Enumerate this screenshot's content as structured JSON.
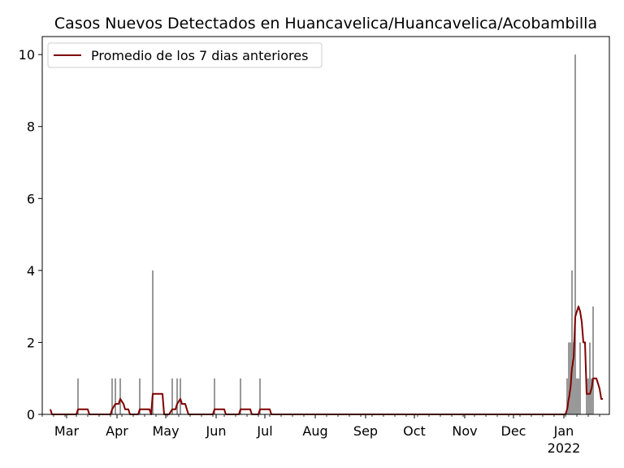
{
  "chart_data": {
    "type": "bar",
    "title": "Casos Nuevos Detectados en Huancavelica/Huancavelica/Acobambilla",
    "xlabel": "",
    "ylabel": "",
    "ylim": [
      0,
      10.5
    ],
    "xlim": [
      "2021-02-14",
      "2022-01-29"
    ],
    "grid": false,
    "legend_position": "top-left",
    "colors": {
      "bars": "#808080",
      "line": "#800000"
    },
    "x_ticks": [
      {
        "date": "2021-03-01",
        "label": "Mar"
      },
      {
        "date": "2021-04-01",
        "label": "Apr"
      },
      {
        "date": "2021-05-01",
        "label": "May"
      },
      {
        "date": "2021-06-01",
        "label": "Jun"
      },
      {
        "date": "2021-07-01",
        "label": "Jul"
      },
      {
        "date": "2021-08-01",
        "label": "Aug"
      },
      {
        "date": "2021-09-01",
        "label": "Sep"
      },
      {
        "date": "2021-10-01",
        "label": "Oct"
      },
      {
        "date": "2021-11-01",
        "label": "Nov"
      },
      {
        "date": "2021-12-01",
        "label": "Dec"
      },
      {
        "date": "2022-01-01",
        "label": "Jan",
        "sublabel": "2022"
      }
    ],
    "y_ticks": [
      0,
      2,
      4,
      6,
      8,
      10
    ],
    "series": [
      {
        "type": "bar",
        "points": [
          [
            "2021-02-20",
            0
          ],
          [
            "2021-02-26",
            0
          ],
          [
            "2021-03-08",
            1
          ],
          [
            "2021-03-29",
            1
          ],
          [
            "2021-03-31",
            1
          ],
          [
            "2021-04-03",
            1
          ],
          [
            "2021-04-15",
            1
          ],
          [
            "2021-04-23",
            4
          ],
          [
            "2021-05-05",
            1
          ],
          [
            "2021-05-08",
            1
          ],
          [
            "2021-05-10",
            1
          ],
          [
            "2021-05-31",
            1
          ],
          [
            "2021-06-16",
            1
          ],
          [
            "2021-06-28",
            1
          ],
          [
            "2022-01-03",
            1
          ],
          [
            "2022-01-04",
            2
          ],
          [
            "2022-01-05",
            2
          ],
          [
            "2022-01-06",
            4
          ],
          [
            "2022-01-07",
            2
          ],
          [
            "2022-01-08",
            10
          ],
          [
            "2022-01-09",
            1
          ],
          [
            "2022-01-10",
            1
          ],
          [
            "2022-01-11",
            2
          ],
          [
            "2022-01-15",
            1
          ],
          [
            "2022-01-16",
            1
          ],
          [
            "2022-01-17",
            2
          ],
          [
            "2022-01-18",
            1
          ],
          [
            "2022-01-19",
            3
          ]
        ]
      },
      {
        "type": "line",
        "name": "Promedio de los 7 dias anteriores",
        "points": [
          [
            "2021-02-19",
            0.14
          ],
          [
            "2021-02-20",
            0
          ],
          [
            "2021-03-07",
            0
          ],
          [
            "2021-03-08",
            0.14
          ],
          [
            "2021-03-14",
            0.14
          ],
          [
            "2021-03-15",
            0
          ],
          [
            "2021-03-28",
            0
          ],
          [
            "2021-03-29",
            0.14
          ],
          [
            "2021-03-31",
            0.29
          ],
          [
            "2021-04-02",
            0.29
          ],
          [
            "2021-04-03",
            0.43
          ],
          [
            "2021-04-05",
            0.29
          ],
          [
            "2021-04-06",
            0.14
          ],
          [
            "2021-04-08",
            0.14
          ],
          [
            "2021-04-09",
            0
          ],
          [
            "2021-04-14",
            0
          ],
          [
            "2021-04-15",
            0.14
          ],
          [
            "2021-04-21",
            0.14
          ],
          [
            "2021-04-22",
            0
          ],
          [
            "2021-04-23",
            0.57
          ],
          [
            "2021-04-29",
            0.57
          ],
          [
            "2021-04-30",
            0
          ],
          [
            "2021-05-03",
            0
          ],
          [
            "2021-05-05",
            0.14
          ],
          [
            "2021-05-07",
            0.14
          ],
          [
            "2021-05-08",
            0.29
          ],
          [
            "2021-05-10",
            0.43
          ],
          [
            "2021-05-11",
            0.29
          ],
          [
            "2021-05-13",
            0.29
          ],
          [
            "2021-05-14",
            0.14
          ],
          [
            "2021-05-15",
            0
          ],
          [
            "2021-05-30",
            0
          ],
          [
            "2021-05-31",
            0.14
          ],
          [
            "2021-06-06",
            0.14
          ],
          [
            "2021-06-07",
            0
          ],
          [
            "2021-06-15",
            0
          ],
          [
            "2021-06-16",
            0.14
          ],
          [
            "2021-06-22",
            0.14
          ],
          [
            "2021-06-23",
            0
          ],
          [
            "2021-06-27",
            0
          ],
          [
            "2021-06-28",
            0.14
          ],
          [
            "2021-07-04",
            0.14
          ],
          [
            "2021-07-05",
            0
          ],
          [
            "2022-01-02",
            0
          ],
          [
            "2022-01-03",
            0.14
          ],
          [
            "2022-01-04",
            0.43
          ],
          [
            "2022-01-05",
            0.71
          ],
          [
            "2022-01-06",
            1.29
          ],
          [
            "2022-01-07",
            1.57
          ],
          [
            "2022-01-08",
            2.71
          ],
          [
            "2022-01-09",
            2.86
          ],
          [
            "2022-01-10",
            3.0
          ],
          [
            "2022-01-11",
            2.86
          ],
          [
            "2022-01-12",
            2.57
          ],
          [
            "2022-01-13",
            2.0
          ],
          [
            "2022-01-14",
            2.0
          ],
          [
            "2022-01-15",
            0.57
          ],
          [
            "2022-01-16",
            0.57
          ],
          [
            "2022-01-17",
            0.57
          ],
          [
            "2022-01-18",
            0.71
          ],
          [
            "2022-01-19",
            1.0
          ],
          [
            "2022-01-21",
            1.0
          ],
          [
            "2022-01-22",
            0.86
          ],
          [
            "2022-01-23",
            0.71
          ],
          [
            "2022-01-24",
            0.43
          ],
          [
            "2022-01-25",
            0.43
          ]
        ]
      }
    ]
  }
}
